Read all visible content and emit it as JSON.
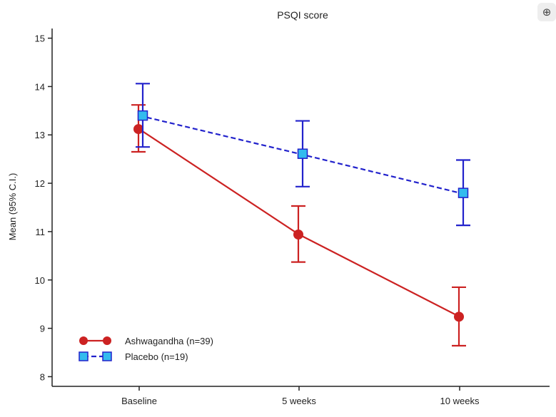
{
  "chart_data": {
    "type": "line",
    "title": "PSQI score",
    "xlabel": "",
    "ylabel": "Mean (95% C.I.)",
    "categories": [
      "Baseline",
      "5 weeks",
      "10 weeks"
    ],
    "ylim": [
      7.8,
      15.2
    ],
    "yticks": [
      8,
      9,
      10,
      11,
      12,
      13,
      14,
      15
    ],
    "legend_position": "bottom-left",
    "series": [
      {
        "name": "Ashwagandha (n=39)",
        "values": [
          13.12,
          10.94,
          9.24
        ],
        "ci_low": [
          12.65,
          10.37,
          8.64
        ],
        "ci_high": [
          13.62,
          11.53,
          9.85
        ],
        "color": "#cc2222",
        "marker": "circle",
        "line": "solid"
      },
      {
        "name": "Placebo (n=19)",
        "values": [
          13.4,
          12.61,
          11.8
        ],
        "ci_low": [
          12.75,
          11.93,
          11.13
        ],
        "ci_high": [
          14.06,
          13.29,
          12.48
        ],
        "color": "#2222cc",
        "marker_fill": "#33bbee",
        "marker": "square",
        "line": "dashed"
      }
    ]
  },
  "ui": {
    "zoom_icon": "zoom-in-icon",
    "zoom_glyph": "⊕"
  }
}
